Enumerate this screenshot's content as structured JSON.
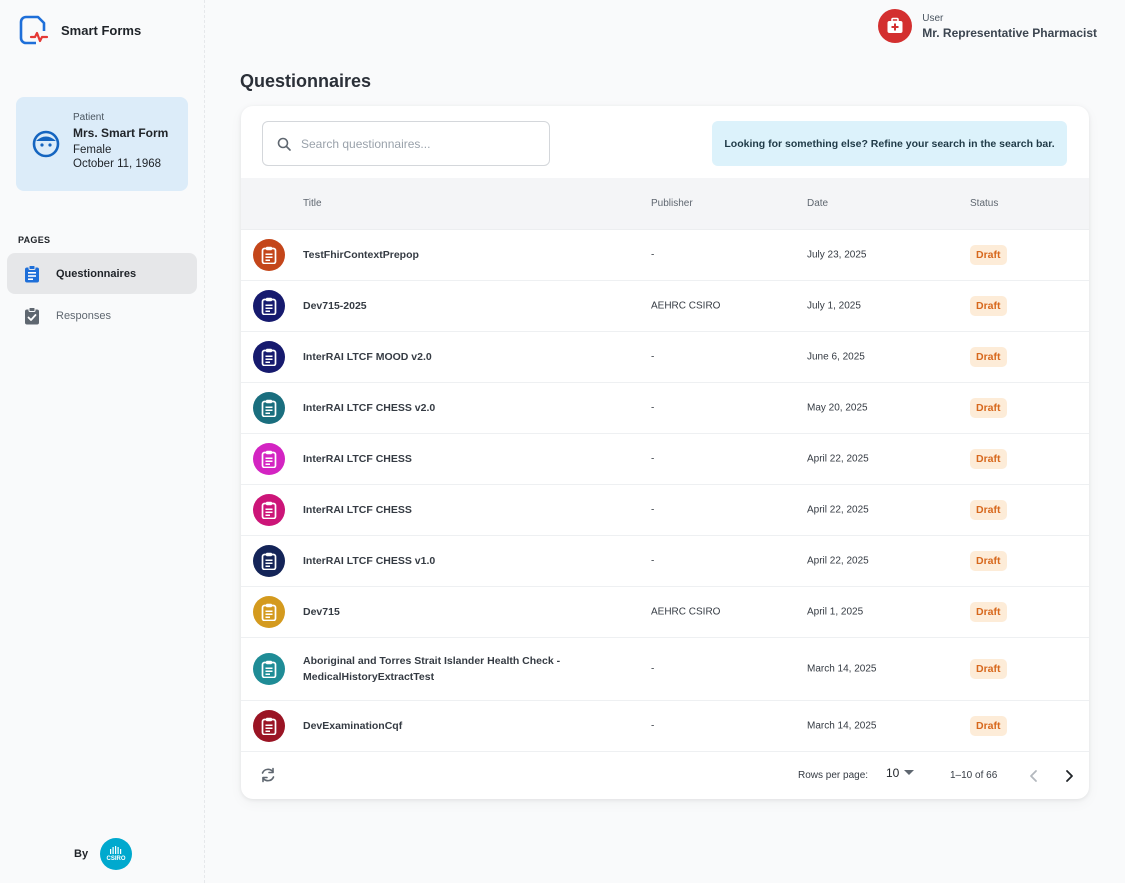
{
  "app": {
    "name": "Smart Forms"
  },
  "patient": {
    "label": "Patient",
    "name": "Mrs. Smart Form",
    "gender": "Female",
    "dob": "October 11, 1968"
  },
  "nav": {
    "heading": "PAGES",
    "items": [
      {
        "label": "Questionnaires",
        "active": true
      },
      {
        "label": "Responses",
        "active": false
      }
    ]
  },
  "footer_brand": {
    "by": "By",
    "org": "CSIRO"
  },
  "user": {
    "label": "User",
    "name": "Mr. Representative Pharmacist"
  },
  "page": {
    "title": "Questionnaires"
  },
  "search": {
    "placeholder": "Search questionnaires...",
    "value": "",
    "hint": "Looking for something else? Refine your search in the search bar."
  },
  "table": {
    "columns": {
      "title": "Title",
      "publisher": "Publisher",
      "date": "Date",
      "status": "Status"
    },
    "rows": [
      {
        "title": "TestFhirContextPrepop",
        "publisher": "-",
        "date": "July 23, 2025",
        "status": "Draft",
        "color": "#c4461a"
      },
      {
        "title": "Dev715-2025",
        "publisher": "AEHRC CSIRO",
        "date": "July 1, 2025",
        "status": "Draft",
        "color": "#161a6e"
      },
      {
        "title": "InterRAI LTCF MOOD v2.0",
        "publisher": "-",
        "date": "June 6, 2025",
        "status": "Draft",
        "color": "#161a6e"
      },
      {
        "title": "InterRAI LTCF CHESS v2.0",
        "publisher": "-",
        "date": "May 20, 2025",
        "status": "Draft",
        "color": "#1a6e7e"
      },
      {
        "title": "InterRAI LTCF CHESS",
        "publisher": "-",
        "date": "April 22, 2025",
        "status": "Draft",
        "color": "#d324c2"
      },
      {
        "title": "InterRAI LTCF CHESS",
        "publisher": "-",
        "date": "April 22, 2025",
        "status": "Draft",
        "color": "#cc1578"
      },
      {
        "title": "InterRAI LTCF CHESS v1.0",
        "publisher": "-",
        "date": "April 22, 2025",
        "status": "Draft",
        "color": "#142458"
      },
      {
        "title": "Dev715",
        "publisher": "AEHRC CSIRO",
        "date": "April 1, 2025",
        "status": "Draft",
        "color": "#d49a1e"
      },
      {
        "title": "Aboriginal and Torres Strait Islander Health Check - MedicalHistoryExtractTest",
        "publisher": "-",
        "date": "March 14, 2025",
        "status": "Draft",
        "color": "#1f8c96"
      },
      {
        "title": "DevExaminationCqf",
        "publisher": "-",
        "date": "March 14, 2025",
        "status": "Draft",
        "color": "#9a1424"
      }
    ]
  },
  "pagination": {
    "rows_per_page_label": "Rows per page:",
    "rows_per_page": "10",
    "range": "1–10 of 66"
  },
  "colors": {
    "accent": "#1e6fd9",
    "status_bg": "#fdecd8",
    "status_text": "#d7681d",
    "user_avatar": "#d32f2f"
  }
}
